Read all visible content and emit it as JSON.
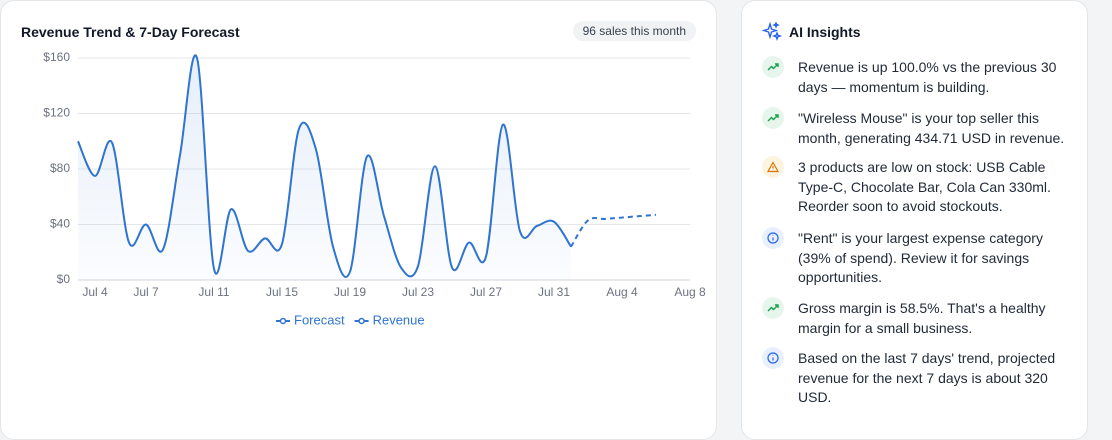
{
  "chart_data": {
    "type": "line",
    "title": "Revenue Trend & 7-Day Forecast",
    "badge": "96 sales this month",
    "categories": [
      null,
      "Jul 4",
      null,
      null,
      "Jul 7",
      null,
      null,
      null,
      "Jul 11",
      null,
      null,
      null,
      "Jul 15",
      null,
      null,
      null,
      "Jul 19",
      null,
      null,
      null,
      "Jul 23",
      null,
      null,
      null,
      "Jul 27",
      null,
      null,
      null,
      "Jul 31",
      null,
      null,
      null,
      "Aug 4",
      null,
      null,
      null,
      "Aug 8"
    ],
    "series": [
      {
        "name": "Forecast",
        "color": "#2f74d0",
        "dashed": true,
        "values": [
          null,
          null,
          null,
          null,
          null,
          null,
          null,
          null,
          null,
          null,
          null,
          null,
          null,
          null,
          null,
          null,
          null,
          null,
          null,
          null,
          null,
          null,
          null,
          null,
          null,
          null,
          null,
          null,
          null,
          24,
          43,
          44,
          45,
          46,
          47,
          null,
          null
        ]
      },
      {
        "name": "Revenue",
        "color": "#2f74d0",
        "area": true,
        "values": [
          100,
          75,
          99,
          27,
          40,
          22,
          90,
          160,
          8,
          51,
          21,
          30,
          26,
          109,
          94,
          24,
          6,
          89,
          46,
          9,
          10,
          82,
          9,
          27,
          17,
          112,
          35,
          39,
          42,
          24,
          null,
          null,
          null,
          null,
          null,
          null,
          null
        ]
      }
    ],
    "ylim": [
      0,
      160
    ],
    "yticks": [
      {
        "value": 0,
        "label": "$0"
      },
      {
        "value": 40,
        "label": "$40"
      },
      {
        "value": 80,
        "label": "$80"
      },
      {
        "value": 120,
        "label": "$120"
      },
      {
        "value": 160,
        "label": "$160"
      }
    ],
    "grid": true
  },
  "insights": {
    "title": "AI Insights",
    "items": [
      "Revenue is up 100.0% vs the previous 30 days — momentum is building.",
      "\"Wireless Mouse\" is your top seller this month, generating 434.71 USD in revenue.",
      "3 products are low on stock: USB Cable Type-C, Chocolate Bar, Cola Can 330ml. Reorder soon to avoid stockouts.",
      "\"Rent\" is your largest expense category (39% of spend). Review it for savings opportunities.",
      "Gross margin is 58.5%. That's a healthy margin for a small business.",
      "Based on the last 7 days' trend, projected revenue for the next 7 days is about 320 USD."
    ]
  }
}
